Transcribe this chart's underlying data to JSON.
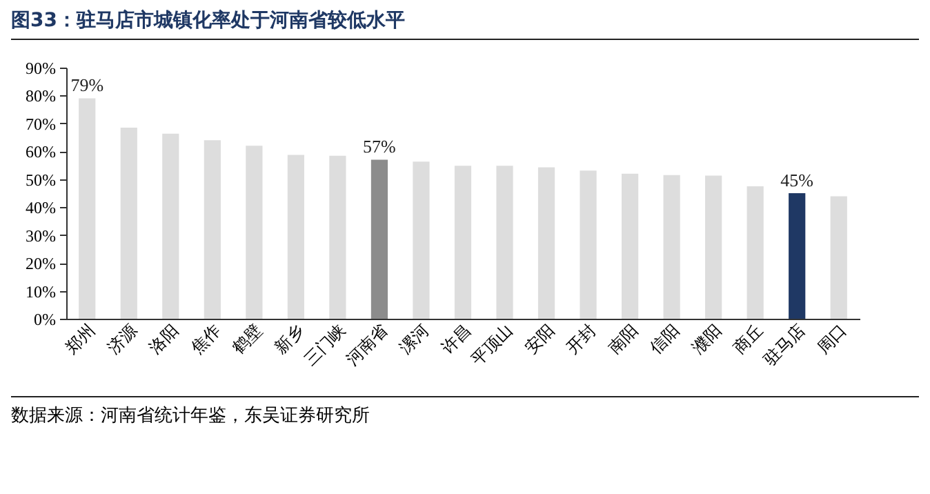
{
  "chart_data": {
    "type": "bar",
    "title": "图33：驻马店市城镇化率处于河南省较低水平",
    "categories": [
      "郑州",
      "济源",
      "洛阳",
      "焦作",
      "鹤壁",
      "新乡",
      "三门峡",
      "河南省",
      "漯河",
      "许昌",
      "平顶山",
      "安阳",
      "开封",
      "南阳",
      "信阳",
      "濮阳",
      "商丘",
      "驻马店",
      "周口"
    ],
    "values": [
      79,
      68.5,
      66.3,
      64,
      62,
      58.7,
      58.4,
      57,
      56.3,
      54.8,
      54.8,
      54.3,
      53.1,
      52,
      51.5,
      51.3,
      47.5,
      45,
      43.9
    ],
    "colors": [
      "#dddddd",
      "#dddddd",
      "#dddddd",
      "#dddddd",
      "#dddddd",
      "#dddddd",
      "#dddddd",
      "#8c8c8c",
      "#dddddd",
      "#dddddd",
      "#dddddd",
      "#dddddd",
      "#dddddd",
      "#dddddd",
      "#dddddd",
      "#dddddd",
      "#dddddd",
      "#1f3864",
      "#dddddd"
    ],
    "value_labels": [
      "79%",
      null,
      null,
      null,
      null,
      null,
      null,
      "57%",
      null,
      null,
      null,
      null,
      null,
      null,
      null,
      null,
      null,
      "45%",
      null
    ],
    "ylim": [
      0,
      90
    ],
    "yticks": [
      {
        "value": 0,
        "label": "0%"
      },
      {
        "value": 10,
        "label": "10%"
      },
      {
        "value": 20,
        "label": "20%"
      },
      {
        "value": 30,
        "label": "30%"
      },
      {
        "value": 40,
        "label": "40%"
      },
      {
        "value": 50,
        "label": "50%"
      },
      {
        "value": 60,
        "label": "60%"
      },
      {
        "value": 70,
        "label": "70%"
      },
      {
        "value": 80,
        "label": "80%"
      },
      {
        "value": 90,
        "label": "90%"
      }
    ],
    "grid": false,
    "annotations": [
      "数据来源：河南省统计年鉴，东吴证券研究所"
    ]
  }
}
